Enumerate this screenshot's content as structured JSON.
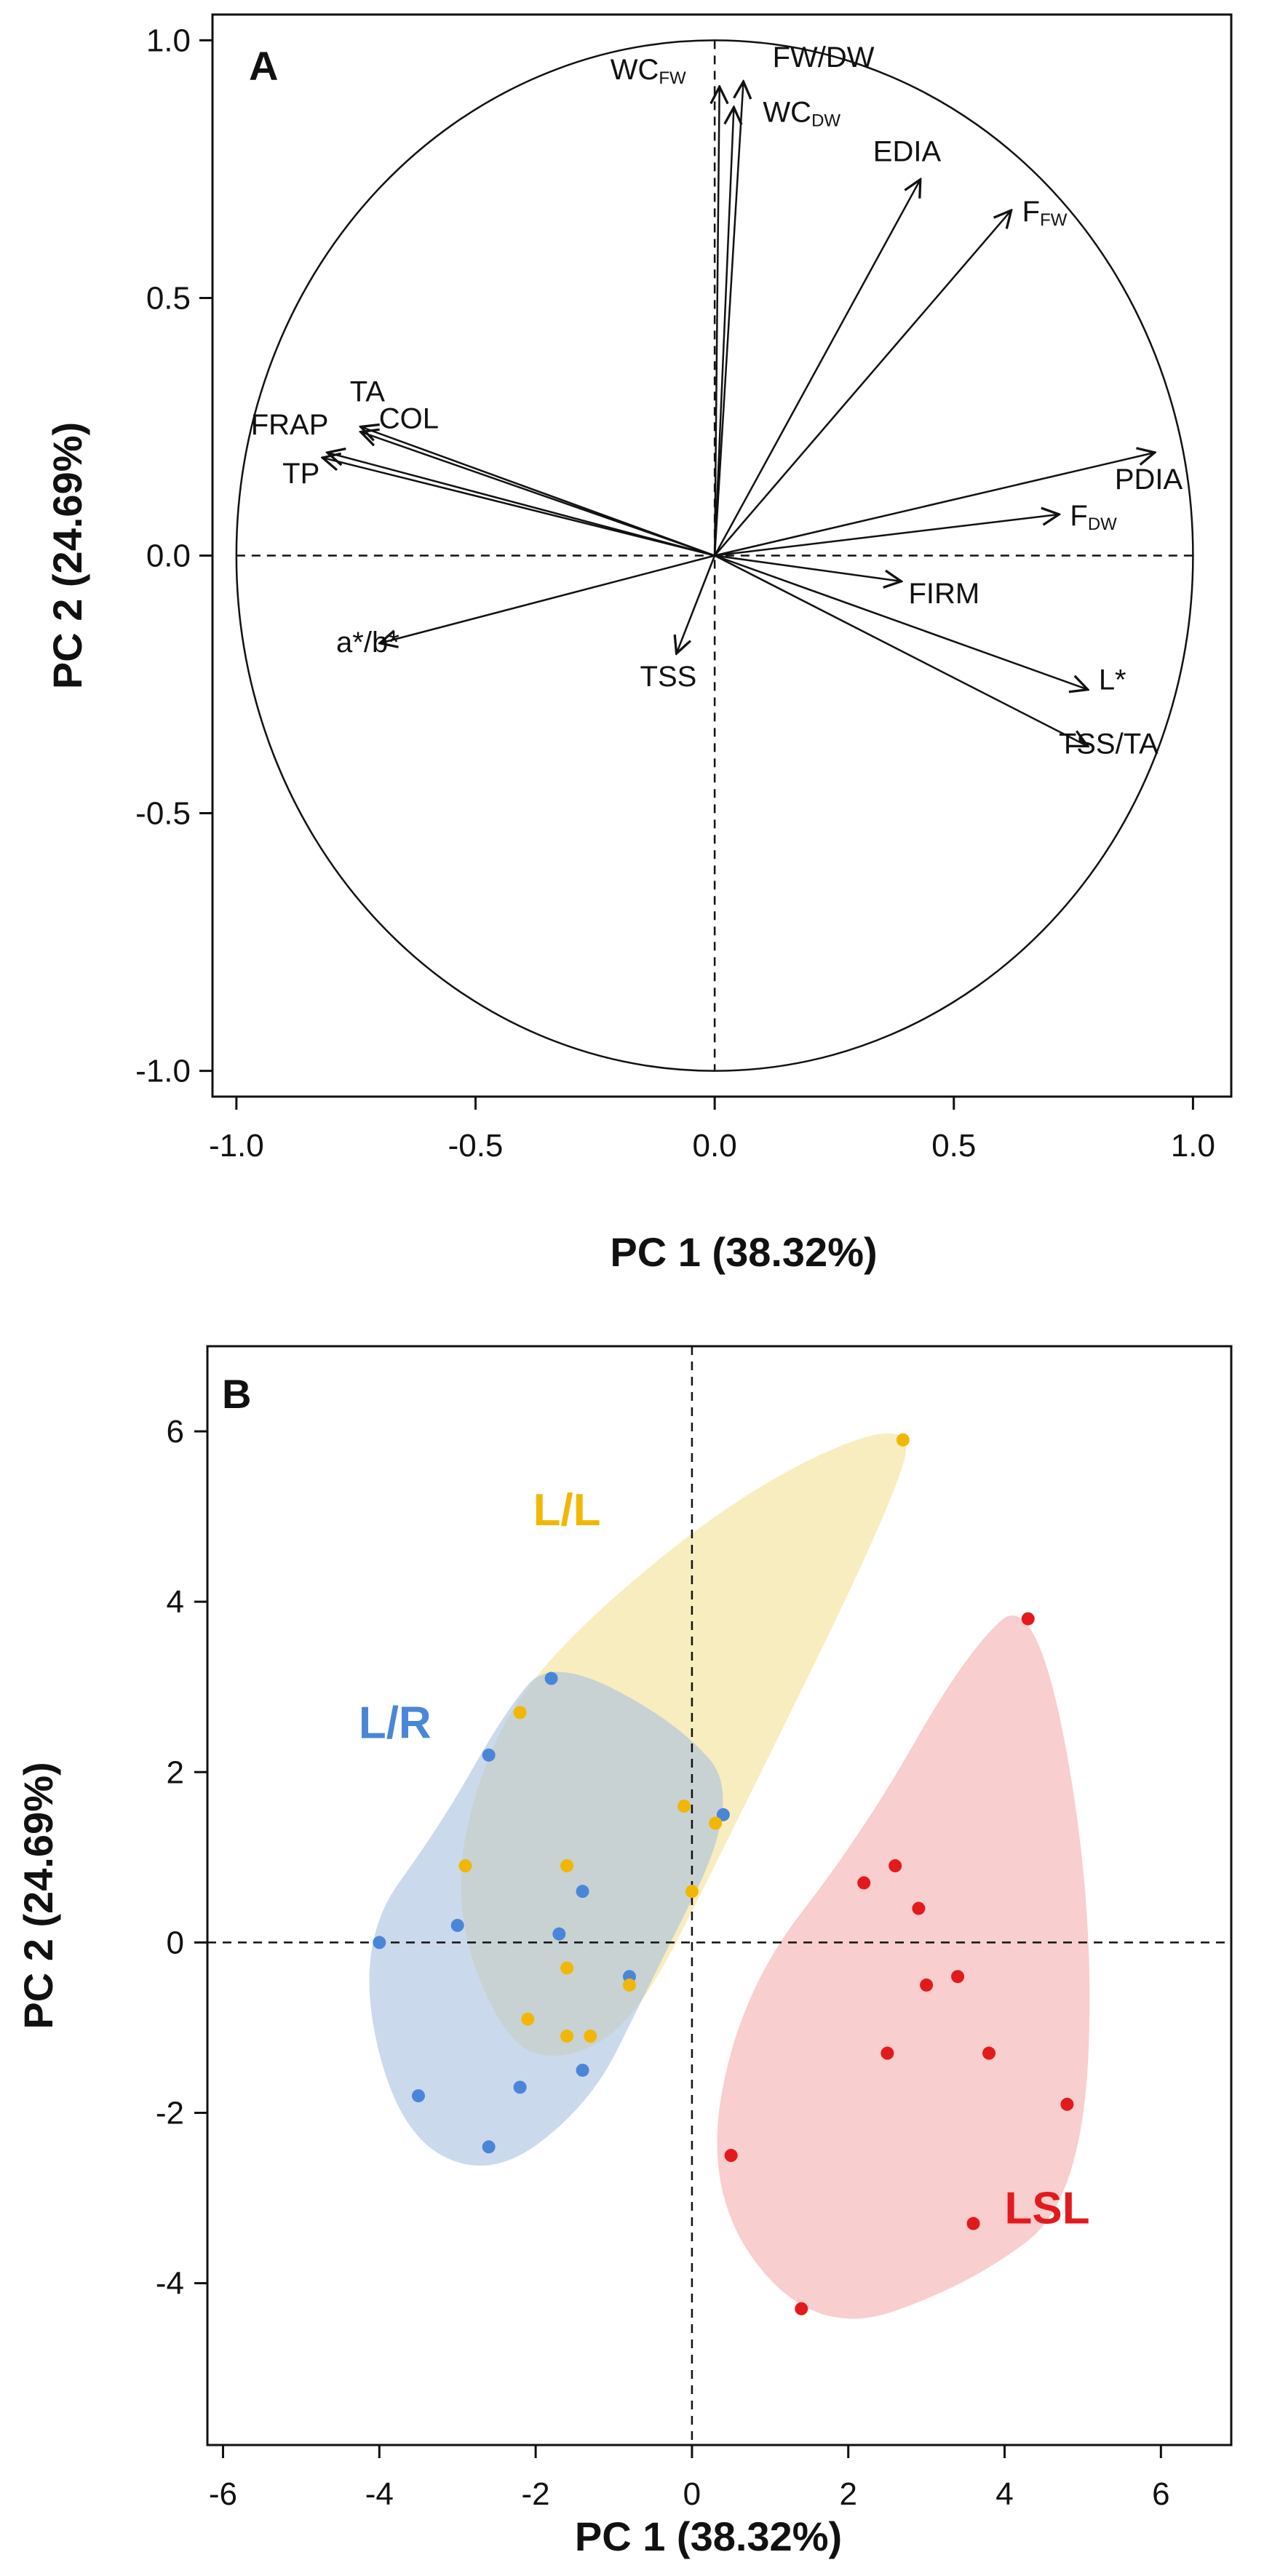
{
  "chart_data": [
    {
      "type": "scatter",
      "subtype": "pca-loadings-circle",
      "panel": "A",
      "title": "",
      "xlabel": "PC 1 (38.32%)",
      "ylabel": "PC 2 (24.69%)",
      "xlim": [
        -1.05,
        1.08
      ],
      "ylim": [
        -1.05,
        1.05
      ],
      "xticks": [
        {
          "value": -1.0,
          "label": "-1.0"
        },
        {
          "value": -0.5,
          "label": "-0.5"
        },
        {
          "value": 0.0,
          "label": "0.0"
        },
        {
          "value": 0.5,
          "label": "0.5"
        },
        {
          "value": 1.0,
          "label": "1.0"
        }
      ],
      "yticks": [
        {
          "value": -1.0,
          "label": "-1.0"
        },
        {
          "value": -0.5,
          "label": "-0.5"
        },
        {
          "value": 0.0,
          "label": "0.0"
        },
        {
          "value": 0.5,
          "label": "0.5"
        },
        {
          "value": 1.0,
          "label": "1.0"
        }
      ],
      "vectors": [
        {
          "label": "WC",
          "sub": "FW",
          "x": 0.01,
          "y": 0.91
        },
        {
          "label": "FW/DW",
          "sub": "",
          "x": 0.06,
          "y": 0.92
        },
        {
          "label": "WC",
          "sub": "DW",
          "x": 0.04,
          "y": 0.87
        },
        {
          "label": "EDIA",
          "sub": "",
          "x": 0.43,
          "y": 0.73
        },
        {
          "label": "F",
          "sub": "FW",
          "x": 0.62,
          "y": 0.67
        },
        {
          "label": "PDIA",
          "sub": "",
          "x": 0.92,
          "y": 0.2
        },
        {
          "label": "F",
          "sub": "DW",
          "x": 0.72,
          "y": 0.08
        },
        {
          "label": "FIRM",
          "sub": "",
          "x": 0.39,
          "y": -0.05
        },
        {
          "label": "L*",
          "sub": "",
          "x": 0.78,
          "y": -0.26
        },
        {
          "label": "TSS/TA",
          "sub": "",
          "x": 0.78,
          "y": -0.37
        },
        {
          "label": "TSS",
          "sub": "",
          "x": -0.08,
          "y": -0.19
        },
        {
          "label": "a*/b*",
          "sub": "",
          "x": -0.7,
          "y": -0.17
        },
        {
          "label": "TA",
          "sub": "",
          "x": -0.74,
          "y": 0.25
        },
        {
          "label": "COL",
          "sub": "",
          "x": -0.74,
          "y": 0.24
        },
        {
          "label": "FRAP",
          "sub": "",
          "x": -0.81,
          "y": 0.2
        },
        {
          "label": "TP",
          "sub": "",
          "x": -0.82,
          "y": 0.19
        }
      ]
    },
    {
      "type": "scatter",
      "panel": "B",
      "title": "",
      "xlabel": "PC 1 (38.32%)",
      "ylabel": "PC 2 (24.69%)",
      "xlim": [
        -6.2,
        6.9
      ],
      "ylim": [
        -5.9,
        7.0
      ],
      "xticks": [
        {
          "value": -6,
          "label": "-6"
        },
        {
          "value": -4,
          "label": "-4"
        },
        {
          "value": -2,
          "label": "-2"
        },
        {
          "value": 0,
          "label": "0"
        },
        {
          "value": 2,
          "label": "2"
        },
        {
          "value": 4,
          "label": "4"
        },
        {
          "value": 6,
          "label": "6"
        }
      ],
      "yticks": [
        {
          "value": -4,
          "label": "-4"
        },
        {
          "value": -2,
          "label": "-2"
        },
        {
          "value": 0,
          "label": "0"
        },
        {
          "value": 2,
          "label": "2"
        },
        {
          "value": 4,
          "label": "4"
        },
        {
          "value": 6,
          "label": "6"
        }
      ],
      "series": [
        {
          "name": "L/R",
          "color": "#4a86d8",
          "fill": "#a9bfdf",
          "points": [
            {
              "x": -1.8,
              "y": 3.1
            },
            {
              "x": -2.6,
              "y": 2.2
            },
            {
              "x": 0.4,
              "y": 1.5
            },
            {
              "x": -1.4,
              "y": 0.6
            },
            {
              "x": -3.0,
              "y": 0.2
            },
            {
              "x": -4.0,
              "y": 0.0
            },
            {
              "x": -1.7,
              "y": 0.1
            },
            {
              "x": -0.8,
              "y": -0.4
            },
            {
              "x": -1.4,
              "y": -1.5
            },
            {
              "x": -2.2,
              "y": -1.7
            },
            {
              "x": -3.5,
              "y": -1.8
            },
            {
              "x": -2.6,
              "y": -2.4
            }
          ]
        },
        {
          "name": "L/L",
          "color": "#f2b705",
          "fill": "#f4e39b",
          "points": [
            {
              "x": 2.7,
              "y": 5.9
            },
            {
              "x": -2.2,
              "y": 2.7
            },
            {
              "x": -0.1,
              "y": 1.6
            },
            {
              "x": 0.3,
              "y": 1.4
            },
            {
              "x": -2.9,
              "y": 0.9
            },
            {
              "x": -1.6,
              "y": 0.9
            },
            {
              "x": 0.0,
              "y": 0.6
            },
            {
              "x": -1.6,
              "y": -0.3
            },
            {
              "x": -0.8,
              "y": -0.5
            },
            {
              "x": -2.1,
              "y": -0.9
            },
            {
              "x": -1.6,
              "y": -1.1
            },
            {
              "x": -1.3,
              "y": -1.1
            }
          ]
        },
        {
          "name": "LSL",
          "color": "#e31a1c",
          "fill": "#f5b3b6",
          "points": [
            {
              "x": 4.3,
              "y": 3.8
            },
            {
              "x": 2.2,
              "y": 0.7
            },
            {
              "x": 2.6,
              "y": 0.9
            },
            {
              "x": 2.9,
              "y": 0.4
            },
            {
              "x": 3.4,
              "y": -0.4
            },
            {
              "x": 3.0,
              "y": -0.5
            },
            {
              "x": 2.5,
              "y": -1.3
            },
            {
              "x": 3.8,
              "y": -1.3
            },
            {
              "x": 4.8,
              "y": -1.9
            },
            {
              "x": 0.5,
              "y": -2.5
            },
            {
              "x": 3.6,
              "y": -3.3
            },
            {
              "x": 1.4,
              "y": -4.3
            }
          ]
        }
      ]
    }
  ]
}
